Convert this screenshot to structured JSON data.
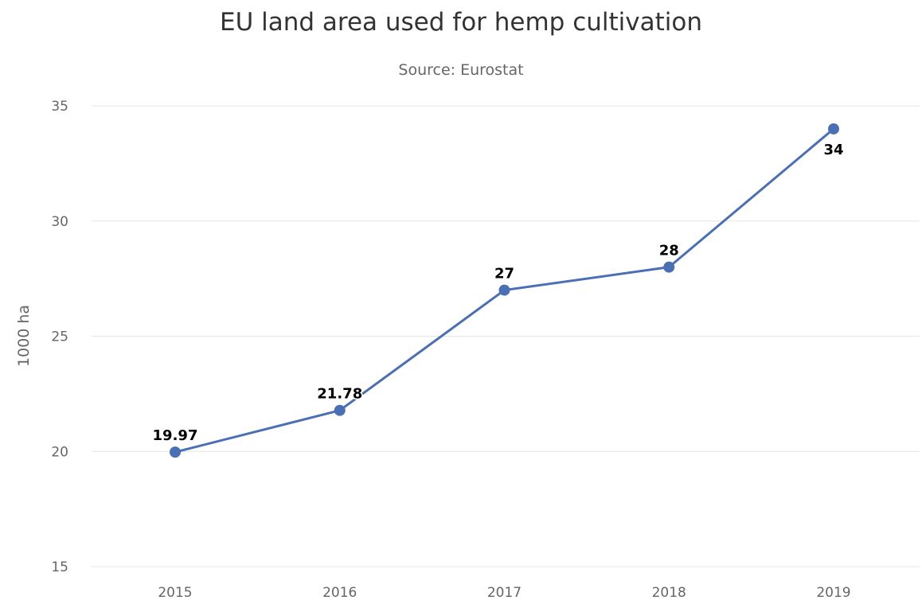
{
  "chart_data": {
    "type": "line",
    "title": "EU land area used for hemp cultivation",
    "subtitle": "Source: Eurostat",
    "xlabel": "",
    "ylabel": "1000 ha",
    "categories": [
      "2015",
      "2016",
      "2017",
      "2018",
      "2019"
    ],
    "series": [
      {
        "values": [
          19.97,
          21.78,
          27,
          28,
          34
        ],
        "labels": [
          "19.97",
          "21.78",
          "27",
          "28",
          "34"
        ],
        "color": "#4a6fb5"
      }
    ],
    "ylim": [
      15,
      35
    ],
    "yticks": [
      15,
      20,
      25,
      30,
      35
    ],
    "grid": true,
    "legend": "none"
  }
}
